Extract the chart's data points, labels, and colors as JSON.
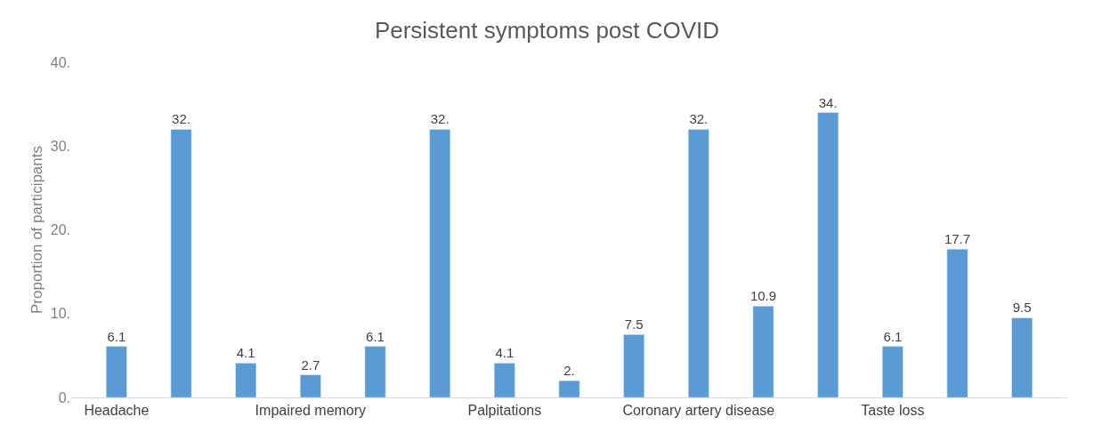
{
  "chart_data": {
    "type": "bar",
    "title": "Persistent symptoms post COVID",
    "ylabel": "Proportion of participants",
    "categories": [
      "Headache",
      null,
      null,
      "Impaired memory",
      null,
      null,
      "Palpitations",
      null,
      null,
      "Coronary artery disease",
      null,
      null,
      "Taste loss",
      null,
      null
    ],
    "values": [
      6.1,
      32.0,
      4.1,
      2.7,
      6.1,
      32.0,
      4.1,
      2.0,
      7.5,
      32.0,
      10.9,
      34.0,
      6.1,
      17.7,
      9.5
    ],
    "value_labels": [
      "6.1",
      "32.",
      "4.1",
      "2.7",
      "6.1",
      "32.",
      "4.1",
      "2.",
      "7.5",
      "32.",
      "10.9",
      "34.",
      "6.1",
      "17.7",
      "9.5"
    ],
    "color": "#5b9bd5",
    "ylim": [
      0,
      40
    ],
    "yticks": [
      {
        "value": 0,
        "label": "0."
      },
      {
        "value": 10,
        "label": "10."
      },
      {
        "value": 20,
        "label": "20."
      },
      {
        "value": 30,
        "label": "30."
      },
      {
        "value": 40,
        "label": "40."
      }
    ],
    "legend": false
  }
}
